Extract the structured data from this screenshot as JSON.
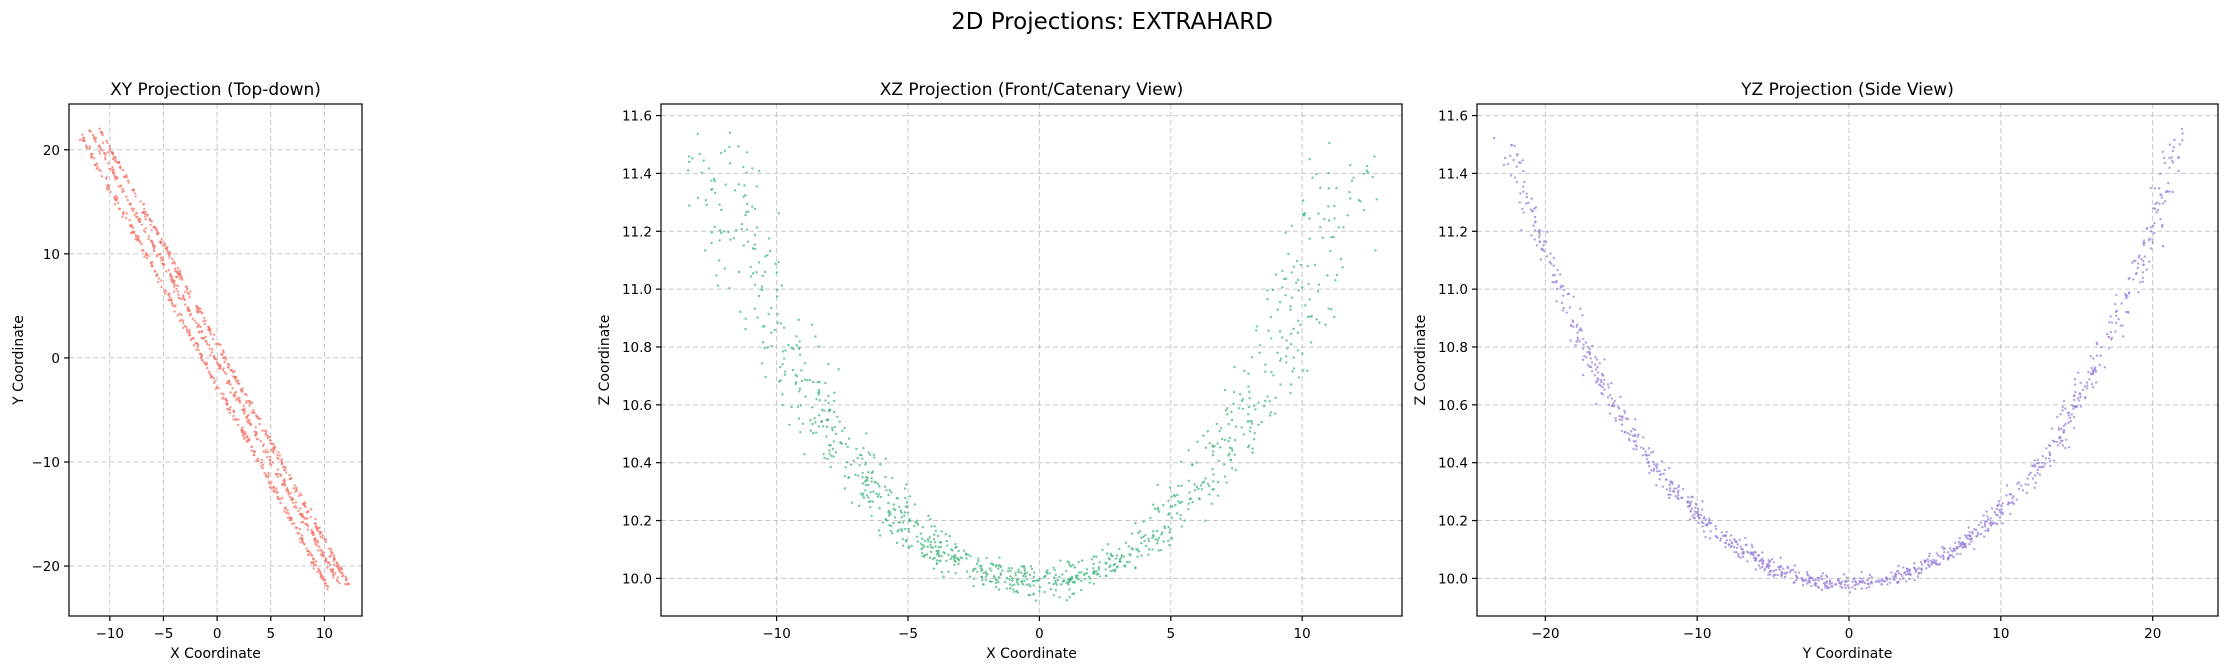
{
  "figure": {
    "title": "2D Projections: EXTRAHARD"
  },
  "colors": {
    "xy": "#f4756a",
    "xz": "#3fb77b",
    "yz": "#9b7fd9"
  },
  "chart_data": [
    {
      "id": "xy",
      "type": "scatter",
      "title": "XY Projection (Top-down)",
      "xlabel": "X Coordinate",
      "ylabel": "Y Coordinate",
      "xlim": [
        -13.8,
        13.5
      ],
      "ylim": [
        -24.8,
        24.4
      ],
      "xticks": [
        -10,
        -5,
        0,
        5,
        10
      ],
      "yticks": [
        -20,
        -10,
        0,
        10,
        20
      ],
      "grid": true,
      "series": [
        {
          "x": [
            -12.7,
            10.4
          ],
          "y": [
            21.4,
            -22.2
          ]
        },
        {
          "x": [
            -11.8,
            11.3
          ],
          "y": [
            21.8,
            -21.6
          ]
        },
        {
          "x": [
            -10.9,
            12.3
          ],
          "y": [
            21.9,
            -21.9
          ]
        }
      ]
    },
    {
      "id": "xz",
      "type": "scatter",
      "title": "XZ Projection (Front/Catenary View)",
      "xlabel": "X Coordinate",
      "ylabel": "Z Coordinate",
      "xlim": [
        -14.4,
        13.8
      ],
      "ylim": [
        9.87,
        11.64
      ],
      "xticks": [
        -10,
        -5,
        0,
        5,
        10
      ],
      "yticks": [
        10.0,
        10.2,
        10.4,
        10.6,
        10.8,
        11.0,
        11.2,
        11.4,
        11.6
      ],
      "grid": true,
      "series": [
        {
          "x": [
            -12.0,
            -6.0,
            0.0,
            6.0,
            11.0
          ],
          "y": [
            11.55,
            10.32,
            9.98,
            10.3,
            11.5
          ]
        },
        {
          "x": [
            -13.0,
            -6.5,
            0.0,
            6.5,
            12.4
          ],
          "y": [
            11.45,
            10.36,
            10.0,
            10.38,
            11.45
          ]
        }
      ]
    },
    {
      "id": "yz",
      "type": "scatter",
      "title": "YZ Projection (Side View)",
      "xlabel": "Y Coordinate",
      "ylabel": "Z Coordinate",
      "xlim": [
        -24.5,
        24.3
      ],
      "ylim": [
        9.87,
        11.64
      ],
      "xticks": [
        -20,
        -10,
        0,
        10,
        20
      ],
      "yticks": [
        10.0,
        10.2,
        10.4,
        10.6,
        10.8,
        11.0,
        11.2,
        11.4,
        11.6
      ],
      "grid": true,
      "series": [
        {
          "x": [
            -22.5,
            -10.0,
            0.0,
            10.0,
            22.0
          ],
          "y": [
            11.52,
            10.3,
            9.98,
            10.3,
            11.55
          ]
        }
      ]
    }
  ]
}
